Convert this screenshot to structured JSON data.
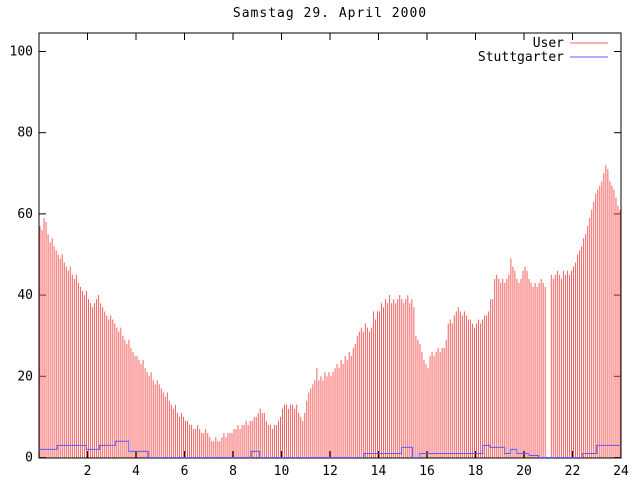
{
  "title": "Samstag 29. April 2000",
  "colors": {
    "background": "#ffffff",
    "border": "#000000",
    "user": "#f75f5f",
    "stuttgarter": "#5c5cf7"
  },
  "legend": {
    "items": [
      {
        "label": "User",
        "color": "#f75f5f"
      },
      {
        "label": "Stuttgarter",
        "color": "#5c5cf7"
      }
    ]
  },
  "chart_data": {
    "type": "bar",
    "title": "Samstag 29. April 2000",
    "xlabel": "",
    "ylabel": "",
    "xlim": [
      0,
      24
    ],
    "ylim": [
      0,
      104.6
    ],
    "x_ticks": [
      2,
      4,
      6,
      8,
      10,
      12,
      14,
      16,
      18,
      20,
      22,
      24
    ],
    "y_ticks": [
      0,
      20,
      40,
      60,
      80,
      100
    ],
    "grid": false,
    "legend_position": "top-right-inside",
    "interval_minutes": 5,
    "series": [
      {
        "name": "User",
        "type": "impulses",
        "color": "#f75f5f",
        "values": [
          57,
          56,
          59,
          58,
          55,
          53,
          54,
          52,
          51,
          50,
          49,
          50,
          48,
          47,
          46,
          47,
          45,
          44,
          45,
          43,
          42,
          41,
          40,
          41,
          39,
          38,
          37,
          38,
          39,
          40,
          38,
          37,
          36,
          35,
          34,
          35,
          34,
          33,
          32,
          31,
          32,
          30,
          29,
          28,
          29,
          27,
          26,
          25,
          25,
          24,
          23,
          24,
          22,
          21,
          20,
          21,
          19,
          18,
          19,
          18,
          17,
          16,
          15,
          16,
          14,
          13,
          12,
          13,
          11,
          10,
          11,
          10,
          9,
          9,
          8,
          8,
          7,
          7,
          8,
          7,
          6,
          6,
          7,
          6,
          5,
          4,
          4,
          5,
          4,
          4,
          5,
          6,
          5,
          6,
          6,
          6,
          7,
          7,
          8,
          7,
          8,
          8,
          9,
          8,
          9,
          9,
          10,
          10,
          11,
          12,
          11,
          11,
          9,
          8,
          8,
          7,
          8,
          8,
          9,
          10,
          12,
          13,
          13,
          12,
          13,
          13,
          12,
          13,
          11,
          10,
          9,
          11,
          14,
          16,
          17,
          18,
          19,
          22,
          19,
          20,
          19,
          21,
          20,
          21,
          20,
          21,
          22,
          23,
          22,
          24,
          23,
          25,
          24,
          26,
          25,
          27,
          28,
          30,
          31,
          32,
          31,
          33,
          32,
          31,
          32,
          36,
          34,
          36,
          36,
          38,
          37,
          39,
          38,
          40,
          38,
          39,
          38,
          39,
          40,
          39,
          38,
          39,
          40,
          38,
          39,
          37,
          30,
          29,
          28,
          26,
          24,
          23,
          22,
          25,
          26,
          25,
          26,
          27,
          26,
          27,
          27,
          29,
          33,
          34,
          33,
          35,
          36,
          37,
          36,
          35,
          36,
          35,
          34,
          34,
          33,
          32,
          33,
          34,
          33,
          34,
          35,
          35,
          36,
          39,
          39,
          44,
          45,
          44,
          43,
          44,
          43,
          44,
          45,
          49,
          47,
          46,
          44,
          43,
          44,
          46,
          47,
          46,
          44,
          43,
          42,
          43,
          42,
          43,
          44,
          43,
          42,
          0,
          0,
          45,
          44,
          45,
          46,
          45,
          44,
          46,
          45,
          46,
          45,
          46,
          47,
          48,
          50,
          51,
          52,
          54,
          55,
          57,
          59,
          61,
          63,
          65,
          66,
          67,
          68,
          70,
          72,
          71,
          68,
          67,
          66,
          64,
          62,
          61
        ]
      },
      {
        "name": "Stuttgarter",
        "type": "steps",
        "color": "#5c5cf7",
        "segments": [
          {
            "start": 0.0,
            "end": 0.75,
            "value": 2
          },
          {
            "start": 0.75,
            "end": 1.95,
            "value": 3
          },
          {
            "start": 1.95,
            "end": 2.5,
            "value": 2
          },
          {
            "start": 2.5,
            "end": 3.15,
            "value": 3
          },
          {
            "start": 3.15,
            "end": 3.7,
            "value": 4
          },
          {
            "start": 3.7,
            "end": 4.5,
            "value": 1.5
          },
          {
            "start": 4.5,
            "end": 8.75,
            "value": 0
          },
          {
            "start": 8.75,
            "end": 9.1,
            "value": 1.5
          },
          {
            "start": 9.1,
            "end": 13.4,
            "value": 0
          },
          {
            "start": 13.4,
            "end": 14.95,
            "value": 1
          },
          {
            "start": 14.95,
            "end": 15.4,
            "value": 2.5
          },
          {
            "start": 15.4,
            "end": 15.7,
            "value": 0
          },
          {
            "start": 15.7,
            "end": 18.3,
            "value": 1
          },
          {
            "start": 18.3,
            "end": 18.6,
            "value": 3
          },
          {
            "start": 18.6,
            "end": 19.2,
            "value": 2.5
          },
          {
            "start": 19.2,
            "end": 19.45,
            "value": 1
          },
          {
            "start": 19.45,
            "end": 19.7,
            "value": 2
          },
          {
            "start": 19.7,
            "end": 20.2,
            "value": 1
          },
          {
            "start": 20.2,
            "end": 20.6,
            "value": 0.5
          },
          {
            "start": 20.6,
            "end": 22.4,
            "value": 0
          },
          {
            "start": 22.4,
            "end": 23.0,
            "value": 1
          },
          {
            "start": 23.0,
            "end": 24.0,
            "value": 3
          }
        ]
      }
    ]
  }
}
